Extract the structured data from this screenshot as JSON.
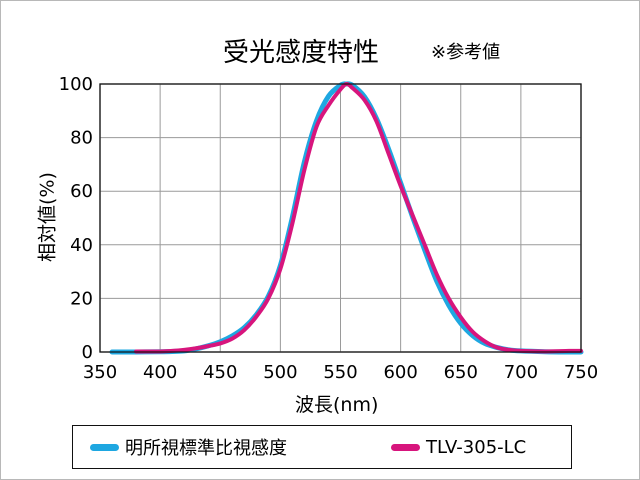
{
  "chart": {
    "title": "受光感度特性",
    "note": "※参考値"
  },
  "chart_data": {
    "type": "line",
    "title": "受光感度特性",
    "xlabel": "波長(nm)",
    "ylabel": "相対値(%)",
    "xlim": [
      350,
      750
    ],
    "ylim": [
      0,
      100
    ],
    "x_ticks": [
      350,
      400,
      450,
      500,
      550,
      600,
      650,
      700,
      750
    ],
    "y_ticks": [
      0,
      20,
      40,
      60,
      80,
      100
    ],
    "grid": true,
    "legend_position": "bottom",
    "series": [
      {
        "name": "明所視標準比視感度",
        "color": "#1ea7e1",
        "points": [
          [
            360,
            0
          ],
          [
            380,
            0
          ],
          [
            400,
            0.1
          ],
          [
            410,
            0.2
          ],
          [
            420,
            0.4
          ],
          [
            430,
            1.2
          ],
          [
            440,
            2.3
          ],
          [
            450,
            3.8
          ],
          [
            460,
            6.0
          ],
          [
            470,
            9.1
          ],
          [
            480,
            13.9
          ],
          [
            490,
            20.8
          ],
          [
            500,
            32.3
          ],
          [
            510,
            50.3
          ],
          [
            520,
            71.0
          ],
          [
            530,
            86.2
          ],
          [
            540,
            95.4
          ],
          [
            550,
            99.5
          ],
          [
            555,
            100
          ],
          [
            560,
            99.5
          ],
          [
            570,
            95.2
          ],
          [
            580,
            87.0
          ],
          [
            590,
            75.7
          ],
          [
            600,
            63.1
          ],
          [
            610,
            50.3
          ],
          [
            620,
            38.1
          ],
          [
            630,
            26.5
          ],
          [
            640,
            17.5
          ],
          [
            650,
            10.7
          ],
          [
            660,
            6.1
          ],
          [
            670,
            3.2
          ],
          [
            680,
            1.7
          ],
          [
            690,
            0.8
          ],
          [
            700,
            0.4
          ],
          [
            720,
            0.1
          ],
          [
            740,
            0.0
          ],
          [
            750,
            0.0
          ]
        ]
      },
      {
        "name": "TLV-305-LC",
        "color": "#d7157d",
        "points": [
          [
            380,
            0.2
          ],
          [
            400,
            0.2
          ],
          [
            410,
            0.4
          ],
          [
            420,
            0.8
          ],
          [
            430,
            1.4
          ],
          [
            440,
            2.2
          ],
          [
            450,
            3.2
          ],
          [
            460,
            5.0
          ],
          [
            470,
            8.2
          ],
          [
            480,
            13.2
          ],
          [
            490,
            20.0
          ],
          [
            500,
            31.0
          ],
          [
            510,
            48.0
          ],
          [
            520,
            68.0
          ],
          [
            530,
            84.0
          ],
          [
            540,
            92.0
          ],
          [
            550,
            98.0
          ],
          [
            555,
            100
          ],
          [
            560,
            98.5
          ],
          [
            570,
            94.0
          ],
          [
            580,
            86.0
          ],
          [
            590,
            74.0
          ],
          [
            600,
            62.0
          ],
          [
            610,
            51.0
          ],
          [
            620,
            40.0
          ],
          [
            630,
            29.0
          ],
          [
            640,
            20.0
          ],
          [
            650,
            13.0
          ],
          [
            660,
            7.5
          ],
          [
            670,
            4.0
          ],
          [
            680,
            1.7
          ],
          [
            690,
            0.8
          ],
          [
            700,
            0.4
          ],
          [
            720,
            0.2
          ],
          [
            740,
            0.4
          ],
          [
            750,
            0.4
          ]
        ]
      }
    ]
  }
}
